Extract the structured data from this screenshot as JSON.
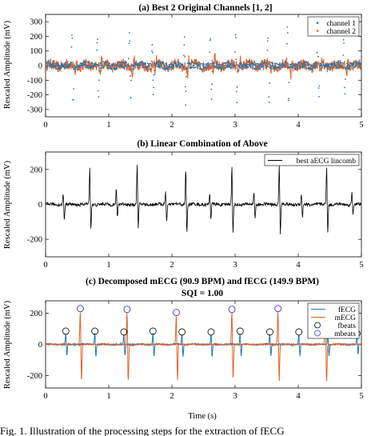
{
  "caption": "Fig. 1.    Illustration of the processing steps for the extraction of fECG",
  "colors": {
    "blue": "#1f77b4",
    "orange": "#e0622a",
    "black": "#000000",
    "circle": "#000000",
    "mcircle": "#3a3adf"
  },
  "chart_data": [
    {
      "type": "line",
      "title": "(a) Best 2 Original Channels [1, 2]",
      "ylabel": "Rescaled Amplitude (mV)",
      "xlabel": "",
      "xlim": [
        0,
        5
      ],
      "ylim": [
        -350,
        350
      ],
      "xticks": [
        0,
        1,
        2,
        3,
        4,
        5
      ],
      "yticks": [
        300,
        200,
        100,
        0,
        -100,
        -200,
        -300
      ],
      "legend": "top-right",
      "series": [
        {
          "name": "channel 1",
          "color": "#1f77b4",
          "style": "dots",
          "beats": [
            {
              "t": 0.42,
              "amp": 250,
              "neg": -280
            },
            {
              "t": 0.82,
              "amp": 210,
              "neg": -240
            },
            {
              "t": 1.33,
              "amp": 260,
              "neg": -270
            },
            {
              "t": 1.69,
              "amp": 180,
              "neg": -220
            },
            {
              "t": 2.2,
              "amp": 230,
              "neg": -260
            },
            {
              "t": 2.61,
              "amp": 200,
              "neg": -250
            },
            {
              "t": 3.01,
              "amp": 240,
              "neg": -270
            },
            {
              "t": 3.52,
              "amp": 210,
              "neg": -260
            },
            {
              "t": 3.83,
              "amp": 300,
              "neg": -280
            },
            {
              "t": 4.31,
              "amp": 240,
              "neg": -230
            },
            {
              "t": 4.72,
              "amp": 180,
              "neg": -200
            }
          ]
        },
        {
          "name": "channel 2",
          "color": "#e0622a",
          "style": "dots",
          "beats": []
        }
      ]
    },
    {
      "type": "line",
      "title": "(b) Linear Combination of Above",
      "ylabel": "Rescaled Amplitude (mV)",
      "xlabel": "",
      "xlim": [
        0,
        5
      ],
      "ylim": [
        -300,
        300
      ],
      "xticks": [
        0,
        1,
        2,
        3,
        4,
        5
      ],
      "yticks": [
        200,
        0,
        -200
      ],
      "legend": "top-right",
      "series": [
        {
          "name": "best aECG lincomb",
          "color": "#000000",
          "beats": [
            {
              "t": 0.28,
              "amp": 70,
              "neg": -95
            },
            {
              "t": 0.7,
              "amp": 225,
              "neg": -150
            },
            {
              "t": 1.12,
              "amp": 90,
              "neg": -80
            },
            {
              "t": 1.45,
              "amp": 230,
              "neg": -160
            },
            {
              "t": 1.9,
              "amp": 80,
              "neg": -100
            },
            {
              "t": 2.22,
              "amp": 210,
              "neg": -170
            },
            {
              "t": 2.6,
              "amp": 70,
              "neg": -90
            },
            {
              "t": 2.95,
              "amp": 220,
              "neg": -180
            },
            {
              "t": 3.3,
              "amp": 80,
              "neg": -90
            },
            {
              "t": 3.7,
              "amp": 240,
              "neg": -180
            },
            {
              "t": 4.05,
              "amp": 60,
              "neg": -80
            },
            {
              "t": 4.45,
              "amp": 220,
              "neg": -170
            },
            {
              "t": 4.85,
              "amp": 70,
              "neg": -60
            }
          ]
        }
      ]
    },
    {
      "type": "line",
      "title": "(c) Decomposed mECG (90.9 BPM) and fECG (149.9 BPM)",
      "subtitle": "SQI = 1.00",
      "ylabel": "Rescaled Amplitude (mV)",
      "xlabel": "Time (s)",
      "xlim": [
        0,
        5
      ],
      "ylim": [
        -280,
        280
      ],
      "xticks": [
        0,
        1,
        2,
        3,
        4,
        5
      ],
      "yticks": [
        200,
        0,
        -200
      ],
      "legend": "top-right",
      "series": [
        {
          "name": "fECG",
          "color": "#1f77b4",
          "beats": [
            {
              "t": 0.32,
              "amp": 70,
              "neg": -80
            },
            {
              "t": 0.78,
              "amp": 75,
              "neg": -85
            },
            {
              "t": 1.24,
              "amp": 70,
              "neg": -80
            },
            {
              "t": 1.7,
              "amp": 75,
              "neg": -85
            },
            {
              "t": 2.16,
              "amp": 70,
              "neg": -80
            },
            {
              "t": 2.62,
              "amp": 70,
              "neg": -85
            },
            {
              "t": 3.08,
              "amp": 75,
              "neg": -85
            },
            {
              "t": 3.55,
              "amp": 70,
              "neg": -80
            },
            {
              "t": 4.01,
              "amp": 70,
              "neg": -80
            },
            {
              "t": 4.47,
              "amp": 70,
              "neg": -85
            },
            {
              "t": 4.93,
              "amp": 60,
              "neg": -70
            }
          ]
        },
        {
          "name": "mECG",
          "color": "#e0622a",
          "beats": [
            {
              "t": 0.55,
              "amp": 225,
              "neg": -250
            },
            {
              "t": 1.29,
              "amp": 220,
              "neg": -255
            },
            {
              "t": 2.07,
              "amp": 205,
              "neg": -245
            },
            {
              "t": 2.95,
              "amp": 225,
              "neg": -240
            },
            {
              "t": 3.68,
              "amp": 230,
              "neg": -250
            },
            {
              "t": 4.43,
              "amp": 225,
              "neg": -260
            }
          ]
        },
        {
          "name": "fbeats",
          "marker": "circle",
          "color": "#000000",
          "points": [
            {
              "x": 0.32,
              "y": 85
            },
            {
              "x": 0.78,
              "y": 85
            },
            {
              "x": 1.24,
              "y": 80
            },
            {
              "x": 1.7,
              "y": 85
            },
            {
              "x": 2.16,
              "y": 80
            },
            {
              "x": 2.62,
              "y": 80
            },
            {
              "x": 3.08,
              "y": 85
            },
            {
              "x": 3.55,
              "y": 80
            },
            {
              "x": 4.01,
              "y": 80
            },
            {
              "x": 4.47,
              "y": 80
            },
            {
              "x": 4.93,
              "y": 70
            }
          ]
        },
        {
          "name": "mbeats",
          "marker": "circle",
          "color": "#3a3adf",
          "points": [
            {
              "x": 0.55,
              "y": 230
            },
            {
              "x": 1.29,
              "y": 225
            },
            {
              "x": 2.07,
              "y": 205
            },
            {
              "x": 2.95,
              "y": 225
            },
            {
              "x": 3.68,
              "y": 230
            },
            {
              "x": 4.43,
              "y": 230
            }
          ]
        }
      ]
    }
  ]
}
